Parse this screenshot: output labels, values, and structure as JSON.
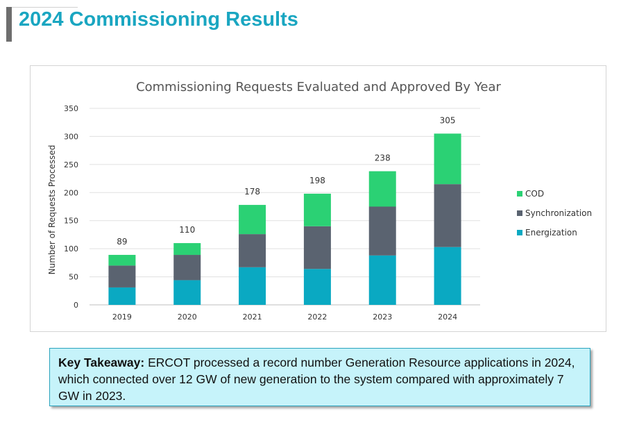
{
  "page": {
    "title": "2024 Commissioning Results"
  },
  "takeaway": {
    "lead": "Key Takeaway:",
    "text": " ERCOT processed a record number Generation Resource applications in 2024, which connected over 12 GW of new generation to the system compared with approximately 7 GW in 2023."
  },
  "chart_data": {
    "type": "bar",
    "stacked": true,
    "title": "Commissioning Requests Evaluated and Approved By Year",
    "xlabel": "",
    "ylabel": "Number of Requests Processed",
    "categories": [
      "2019",
      "2020",
      "2021",
      "2022",
      "2023",
      "2024"
    ],
    "ylim": [
      0,
      350
    ],
    "yticks": [
      0,
      50,
      100,
      150,
      200,
      250,
      300,
      350
    ],
    "grid": true,
    "legend_position": "right",
    "totals": [
      89,
      110,
      178,
      198,
      238,
      305
    ],
    "series": [
      {
        "name": "Energization",
        "color": "#0aa9c2",
        "values": [
          31,
          44,
          67,
          64,
          88,
          103
        ]
      },
      {
        "name": "Synchronization",
        "color": "#5a6370",
        "values": [
          39,
          45,
          59,
          76,
          87,
          112
        ]
      },
      {
        "name": "COD",
        "color": "#2bd174",
        "values": [
          19,
          21,
          52,
          58,
          63,
          90
        ]
      }
    ]
  }
}
